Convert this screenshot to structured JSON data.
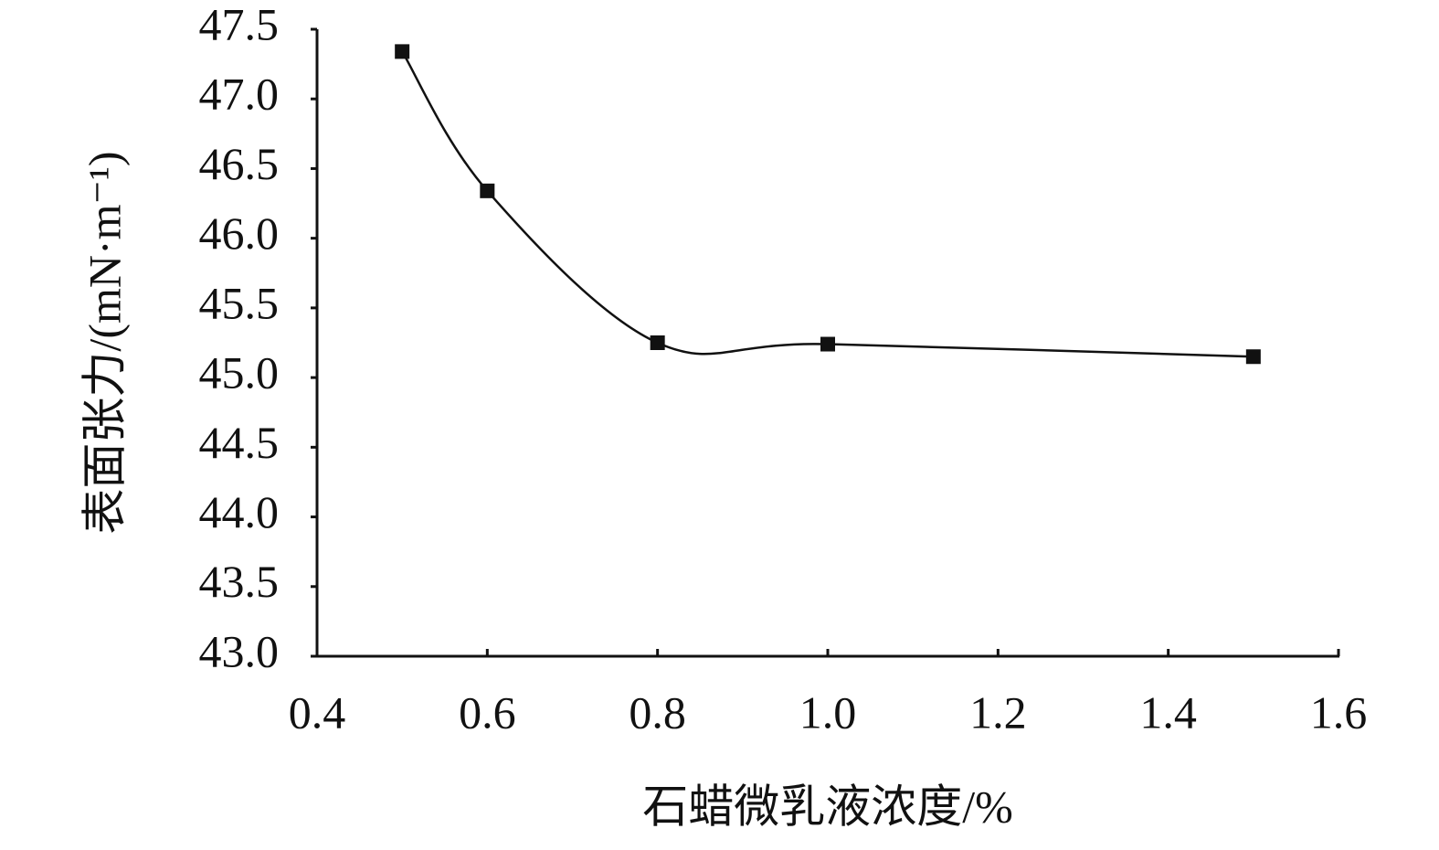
{
  "chart_data": {
    "type": "line",
    "smooth": true,
    "marker": "square",
    "color": "#111111",
    "xlabel": "石蜡微乳液浓度/%",
    "ylabel": "表面张力/(mN·m⁻¹)",
    "x": [
      0.5,
      0.6,
      0.8,
      1.0,
      1.5
    ],
    "values": [
      47.34,
      46.34,
      45.25,
      45.24,
      45.15
    ],
    "xlim": [
      0.4,
      1.6
    ],
    "xticks": [
      0.4,
      0.6,
      0.8,
      {
        "value": 1,
        "label": "1.0"
      },
      1.2,
      1.4,
      1.6
    ],
    "ylim": [
      43,
      47.5
    ],
    "yticks": [
      {
        "value": 43,
        "label": "43.0"
      },
      43.5,
      {
        "value": 44,
        "label": "44.0"
      },
      44.5,
      {
        "value": 45,
        "label": "45.0"
      },
      45.5,
      {
        "value": 46,
        "label": "46.0"
      },
      46.5,
      {
        "value": 47,
        "label": "47.0"
      },
      47.5
    ],
    "grid": false
  }
}
